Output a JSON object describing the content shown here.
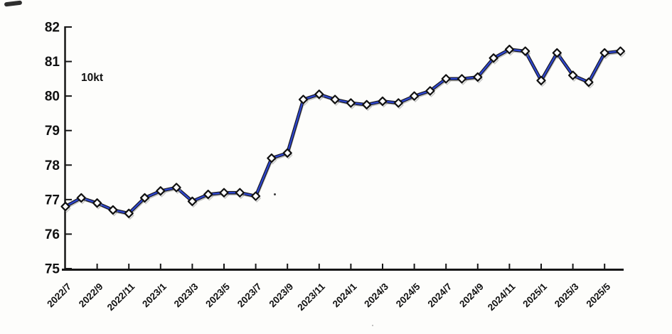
{
  "page": {
    "background": "#fdfdfb"
  },
  "chart_data": {
    "type": "line",
    "title": "",
    "unit_label": "10kt",
    "x": [
      "2022/7",
      "2022/8",
      "2022/9",
      "2022/10",
      "2022/11",
      "2022/12",
      "2023/1",
      "2023/2",
      "2023/3",
      "2023/4",
      "2023/5",
      "2023/6",
      "2023/7",
      "2023/8",
      "2023/9",
      "2023/10",
      "2023/11",
      "2023/12",
      "2024/1",
      "2024/2",
      "2024/3",
      "2024/4",
      "2024/5",
      "2024/6",
      "2024/7",
      "2024/8",
      "2024/9",
      "2024/10",
      "2024/11",
      "2024/12",
      "2025/1",
      "2025/2",
      "2025/3",
      "2025/4",
      "2025/5",
      "2025/6"
    ],
    "values": [
      76.8,
      77.05,
      76.9,
      76.7,
      76.6,
      77.05,
      77.25,
      77.35,
      76.95,
      77.15,
      77.2,
      77.2,
      77.1,
      78.2,
      78.35,
      79.9,
      80.05,
      79.9,
      79.8,
      79.75,
      79.85,
      79.8,
      80.0,
      80.15,
      80.5,
      80.5,
      80.55,
      81.1,
      81.35,
      81.3,
      80.45,
      81.25,
      80.6,
      80.4,
      81.25,
      81.3
    ],
    "x_tick_labels": [
      "2022/7",
      "2022/9",
      "2022/11",
      "2023/1",
      "2023/3",
      "2023/5",
      "2023/7",
      "2023/9",
      "2023/11",
      "2024/1",
      "2024/3",
      "2024/5",
      "2024/7",
      "2024/9",
      "2024/11",
      "2025/1",
      "2025/3",
      "2025/5"
    ],
    "x_tick_every": 2,
    "y_ticks": [
      82,
      81,
      80,
      79,
      78,
      77,
      76,
      75
    ],
    "ylim": [
      75,
      82
    ],
    "grid": false,
    "legend": "none",
    "line_color": "#2e46cc",
    "line_outline_color": "#15151c",
    "marker": "diamond",
    "marker_fill": "#ffffff",
    "marker_stroke": "#111111",
    "ghost_color": "#8f8f8f",
    "axis_color": "#161616",
    "label_color": "#111111"
  }
}
